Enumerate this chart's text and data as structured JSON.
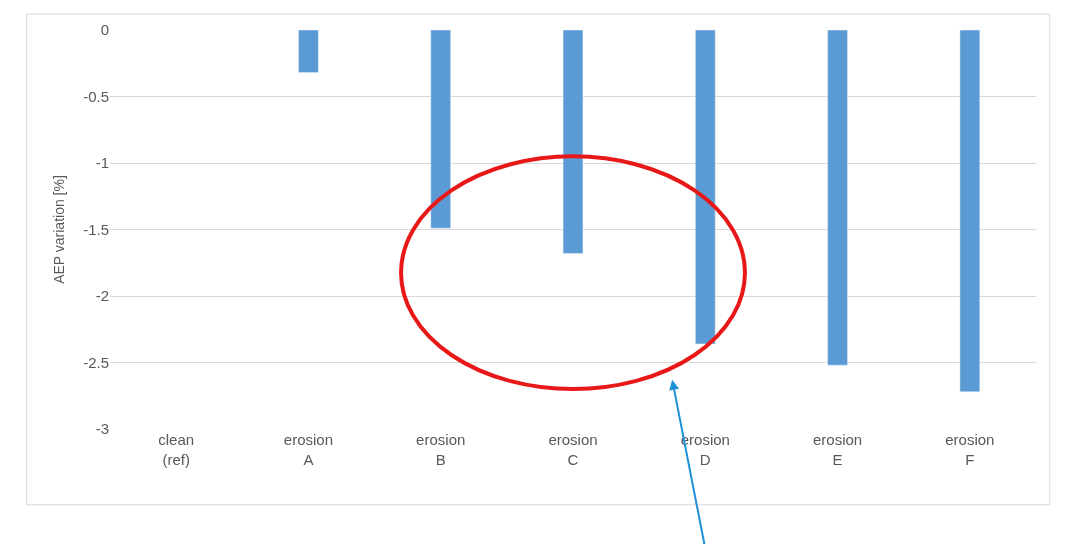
{
  "chart_data": {
    "type": "bar",
    "ylabel": "AEP variation [%]",
    "categories": [
      "clean\n(ref)",
      "erosion\nA",
      "erosion\nB",
      "erosion\nC",
      "erosion\nD",
      "erosion\nE",
      "erosion\nF"
    ],
    "values": [
      null,
      -0.32,
      -1.49,
      -1.68,
      -2.36,
      -2.52,
      -2.72
    ],
    "color": "#5b9bd5",
    "ylim": [
      -3,
      0
    ],
    "yticks": [
      0,
      -0.5,
      -1,
      -1.5,
      -2,
      -2.5,
      -3
    ],
    "grid": "y"
  }
}
